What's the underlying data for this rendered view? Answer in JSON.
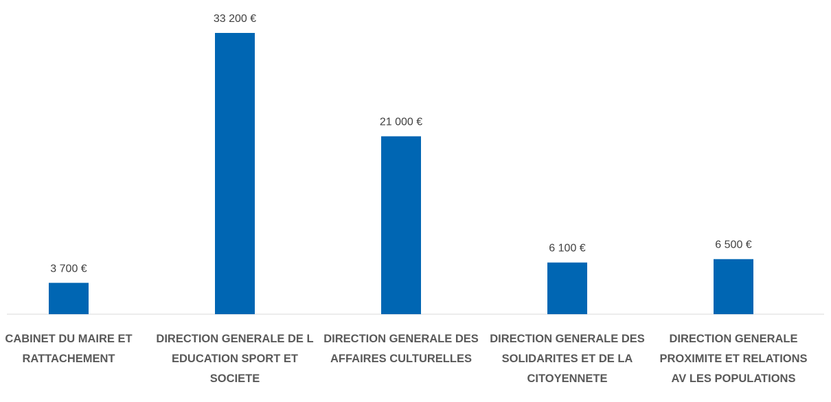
{
  "chart_data": {
    "type": "bar",
    "categories": [
      "CABINET DU MAIRE ET RATTACHEMENT",
      "DIRECTION GENERALE DE L EDUCATION SPORT ET SOCIETE",
      "DIRECTION GENERALE DES AFFAIRES CULTURELLES",
      "DIRECTION GENERALE DES SOLIDARITES ET DE LA CITOYENNETE",
      "DIRECTION GENERALE PROXIMITE ET RELATIONS AV LES POPULATIONS"
    ],
    "values": [
      3700,
      33200,
      21000,
      6100,
      6500
    ],
    "value_labels": [
      "3 700 €",
      "33 200 €",
      "21 000 €",
      "6 100 €",
      "6 500 €"
    ],
    "color": "#0066b3"
  }
}
